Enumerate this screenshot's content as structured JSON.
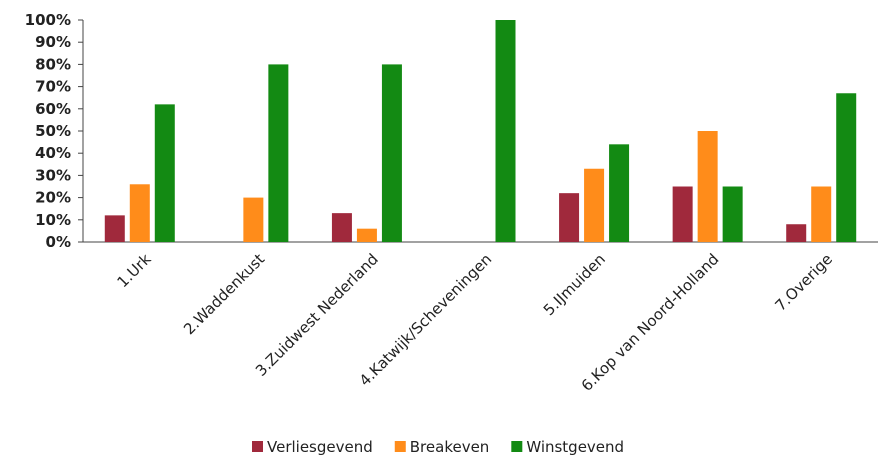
{
  "chart_data": {
    "type": "bar",
    "categories": [
      "1.Urk",
      "2.Waddenkust",
      "3.Zuidwest Nederland",
      "4.Katwijk/Scheveningen",
      "5.IJmuiden",
      "6.Kop van Noord-Holland",
      "7.Overige"
    ],
    "series": [
      {
        "name": "Verliesgevend",
        "color": "#a0293c",
        "values": [
          12,
          0,
          13,
          0,
          22,
          25,
          8
        ]
      },
      {
        "name": "Breakeven",
        "color": "#ff8c1a",
        "values": [
          26,
          20,
          6,
          0,
          33,
          50,
          25
        ]
      },
      {
        "name": "Winstgevend",
        "color": "#138a13",
        "values": [
          62,
          80,
          80,
          100,
          44,
          25,
          67
        ]
      }
    ],
    "yticks": [
      "0%",
      "10%",
      "20%",
      "30%",
      "40%",
      "50%",
      "60%",
      "70%",
      "80%",
      "90%",
      "100%"
    ],
    "ylim": [
      0,
      100
    ],
    "grid": false,
    "legend_position": "bottom"
  }
}
